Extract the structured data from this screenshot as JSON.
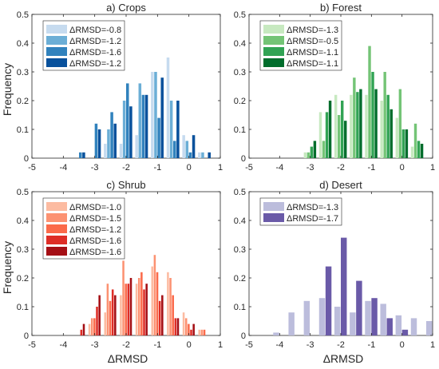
{
  "figure": {
    "ylabel": "Frequency",
    "xlabel": "ΔRMSD"
  },
  "chart_data": [
    {
      "type": "bar",
      "title": "a) Crops",
      "xlabel": "",
      "ylabel": "Frequency",
      "xlim": [
        -5,
        1
      ],
      "ylim": [
        0,
        0.5
      ],
      "xticks": [
        -5,
        -4,
        -3,
        -2,
        -1,
        0,
        1
      ],
      "yticks": [
        0,
        0.1,
        0.2,
        0.3,
        0.4,
        0.5
      ],
      "grid": false,
      "legend_position": "top-left",
      "bin_centers": [
        -3.5,
        -3.0,
        -2.5,
        -2.0,
        -1.5,
        -1.0,
        -0.5,
        0.0,
        0.5
      ],
      "series": [
        {
          "name": "ΔRMSD=-0.8",
          "color": "#c6dbef",
          "values": [
            0.0,
            0.0,
            0.05,
            0.05,
            0.08,
            0.3,
            0.35,
            0.08,
            0.02
          ]
        },
        {
          "name": "ΔRMSD=-1.2",
          "color": "#6baed6",
          "values": [
            0.0,
            0.0,
            0.1,
            0.2,
            0.26,
            0.3,
            0.2,
            0.06,
            0.02
          ]
        },
        {
          "name": "ΔRMSD=-1.6",
          "color": "#3182bd",
          "values": [
            0.02,
            0.12,
            0.16,
            0.26,
            0.22,
            0.14,
            0.06,
            0.02,
            0.0
          ]
        },
        {
          "name": "ΔRMSD=-1.2",
          "color": "#08519c",
          "values": [
            0.02,
            0.1,
            0.12,
            0.18,
            0.22,
            0.28,
            0.2,
            0.08,
            0.02
          ]
        }
      ]
    },
    {
      "type": "bar",
      "title": "b) Forest",
      "xlabel": "",
      "ylabel": "",
      "xlim": [
        -5,
        1
      ],
      "ylim": [
        0,
        0.5
      ],
      "xticks": [
        -5,
        -4,
        -3,
        -2,
        -1,
        0,
        1
      ],
      "yticks": [
        0,
        0.1,
        0.2,
        0.3,
        0.4,
        0.5
      ],
      "grid": false,
      "legend_position": "top-left",
      "bin_centers": [
        -3.0,
        -2.5,
        -2.0,
        -1.5,
        -1.0,
        -0.5,
        0.0,
        0.5
      ],
      "series": [
        {
          "name": "ΔRMSD=-1.3",
          "color": "#c7e9c0",
          "values": [
            0.02,
            0.16,
            0.22,
            0.22,
            0.22,
            0.2,
            0.14,
            0.04
          ]
        },
        {
          "name": "ΔRMSD=-0.5",
          "color": "#74c476",
          "values": [
            0.02,
            0.06,
            0.15,
            0.28,
            0.39,
            0.3,
            0.24,
            0.12
          ]
        },
        {
          "name": "ΔRMSD=-1.1",
          "color": "#31a354",
          "values": [
            0.04,
            0.16,
            0.2,
            0.23,
            0.3,
            0.22,
            0.1,
            0.06
          ]
        },
        {
          "name": "ΔRMSD=-1.1",
          "color": "#006d2c",
          "values": [
            0.06,
            0.2,
            0.13,
            0.24,
            0.24,
            0.17,
            0.1,
            0.05
          ]
        }
      ]
    },
    {
      "type": "bar",
      "title": "c) Shrub",
      "xlabel": "ΔRMSD",
      "ylabel": "Frequency",
      "xlim": [
        -5,
        1
      ],
      "ylim": [
        0,
        0.5
      ],
      "xticks": [
        -5,
        -4,
        -3,
        -2,
        -1,
        0,
        1
      ],
      "yticks": [
        0,
        0.1,
        0.2,
        0.3,
        0.4,
        0.5
      ],
      "grid": false,
      "legend_position": "top-left",
      "bin_centers": [
        -3.5,
        -3.0,
        -2.5,
        -2.0,
        -1.5,
        -1.0,
        -0.5,
        0.0,
        0.5
      ],
      "series": [
        {
          "name": "ΔRMSD=-1.0",
          "color": "#fcbba1",
          "values": [
            0.0,
            0.04,
            0.08,
            0.14,
            0.18,
            0.24,
            0.22,
            0.08,
            0.02
          ]
        },
        {
          "name": "ΔRMSD=-1.5",
          "color": "#fc9272",
          "values": [
            0.0,
            0.06,
            0.18,
            0.26,
            0.2,
            0.28,
            0.2,
            0.06,
            0.02
          ]
        },
        {
          "name": "ΔRMSD=-1.2",
          "color": "#fb6a4a",
          "values": [
            0.0,
            0.06,
            0.12,
            0.18,
            0.22,
            0.22,
            0.14,
            0.04,
            0.02
          ]
        },
        {
          "name": "ΔRMSD=-1.6",
          "color": "#de2d26",
          "values": [
            0.02,
            0.1,
            0.16,
            0.18,
            0.16,
            0.12,
            0.06,
            0.02,
            0.0
          ]
        },
        {
          "name": "ΔRMSD=-1.6",
          "color": "#a50f15",
          "values": [
            0.04,
            0.14,
            0.14,
            0.2,
            0.18,
            0.14,
            0.06,
            0.04,
            0.0
          ]
        }
      ]
    },
    {
      "type": "bar",
      "title": "d) Desert",
      "xlabel": "ΔRMSD",
      "ylabel": "",
      "xlim": [
        -5,
        1
      ],
      "ylim": [
        0,
        0.5
      ],
      "xticks": [
        -5,
        -4,
        -3,
        -2,
        -1,
        0,
        1
      ],
      "yticks": [
        0,
        0.1,
        0.2,
        0.3,
        0.4,
        0.5
      ],
      "grid": false,
      "legend_position": "top-left",
      "bin_centers": [
        -4.0,
        -3.5,
        -3.0,
        -2.5,
        -2.0,
        -1.5,
        -1.0,
        -0.5,
        0.0,
        0.5,
        1.0
      ],
      "series": [
        {
          "name": "ΔRMSD=-1.3",
          "color": "#bcbddc",
          "values": [
            0.01,
            0.08,
            0.12,
            0.13,
            0.1,
            0.08,
            0.12,
            0.11,
            0.07,
            0.06,
            0.05
          ]
        },
        {
          "name": "ΔRMSD=-1.7",
          "color": "#6a5aa8",
          "values": [
            0.0,
            0.0,
            0.0,
            0.24,
            0.34,
            0.19,
            0.13,
            0.06,
            0.02,
            0.0,
            0.0
          ]
        }
      ]
    }
  ]
}
